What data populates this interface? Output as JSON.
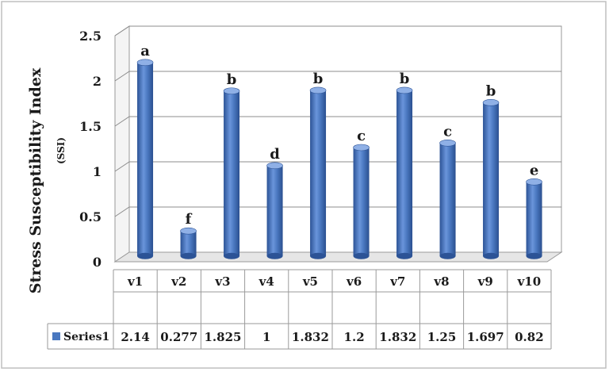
{
  "chart_data": {
    "type": "bar",
    "categories": [
      "v1",
      "v2",
      "v3",
      "v4",
      "v5",
      "v6",
      "v7",
      "v8",
      "v9",
      "v10"
    ],
    "series": [
      {
        "name": "Series1",
        "values": [
          2.14,
          0.277,
          1.825,
          1,
          1.832,
          1.2,
          1.832,
          1.25,
          1.697,
          0.82
        ],
        "value_labels": [
          "2.14",
          "0.277",
          "1.825",
          "1",
          "1.832",
          "1.2",
          "1.832",
          "1.25",
          "1.697",
          "0.82"
        ]
      }
    ],
    "letters": [
      "a",
      "f",
      "b",
      "d",
      "b",
      "c",
      "b",
      "c",
      "b",
      "e"
    ],
    "ylabel": "Stress Susceptibility Index",
    "ylabel_sub": "(SSI)",
    "ylim": [
      0,
      2.5
    ],
    "yticks": [
      "0",
      "0.5",
      "1",
      "1.5",
      "2",
      "2.5"
    ],
    "grid": true,
    "legend": "data-table-left",
    "bar_color": "#4a78c0",
    "bar_dark": "#2c5396",
    "bar_light": "#8fb0e6"
  }
}
